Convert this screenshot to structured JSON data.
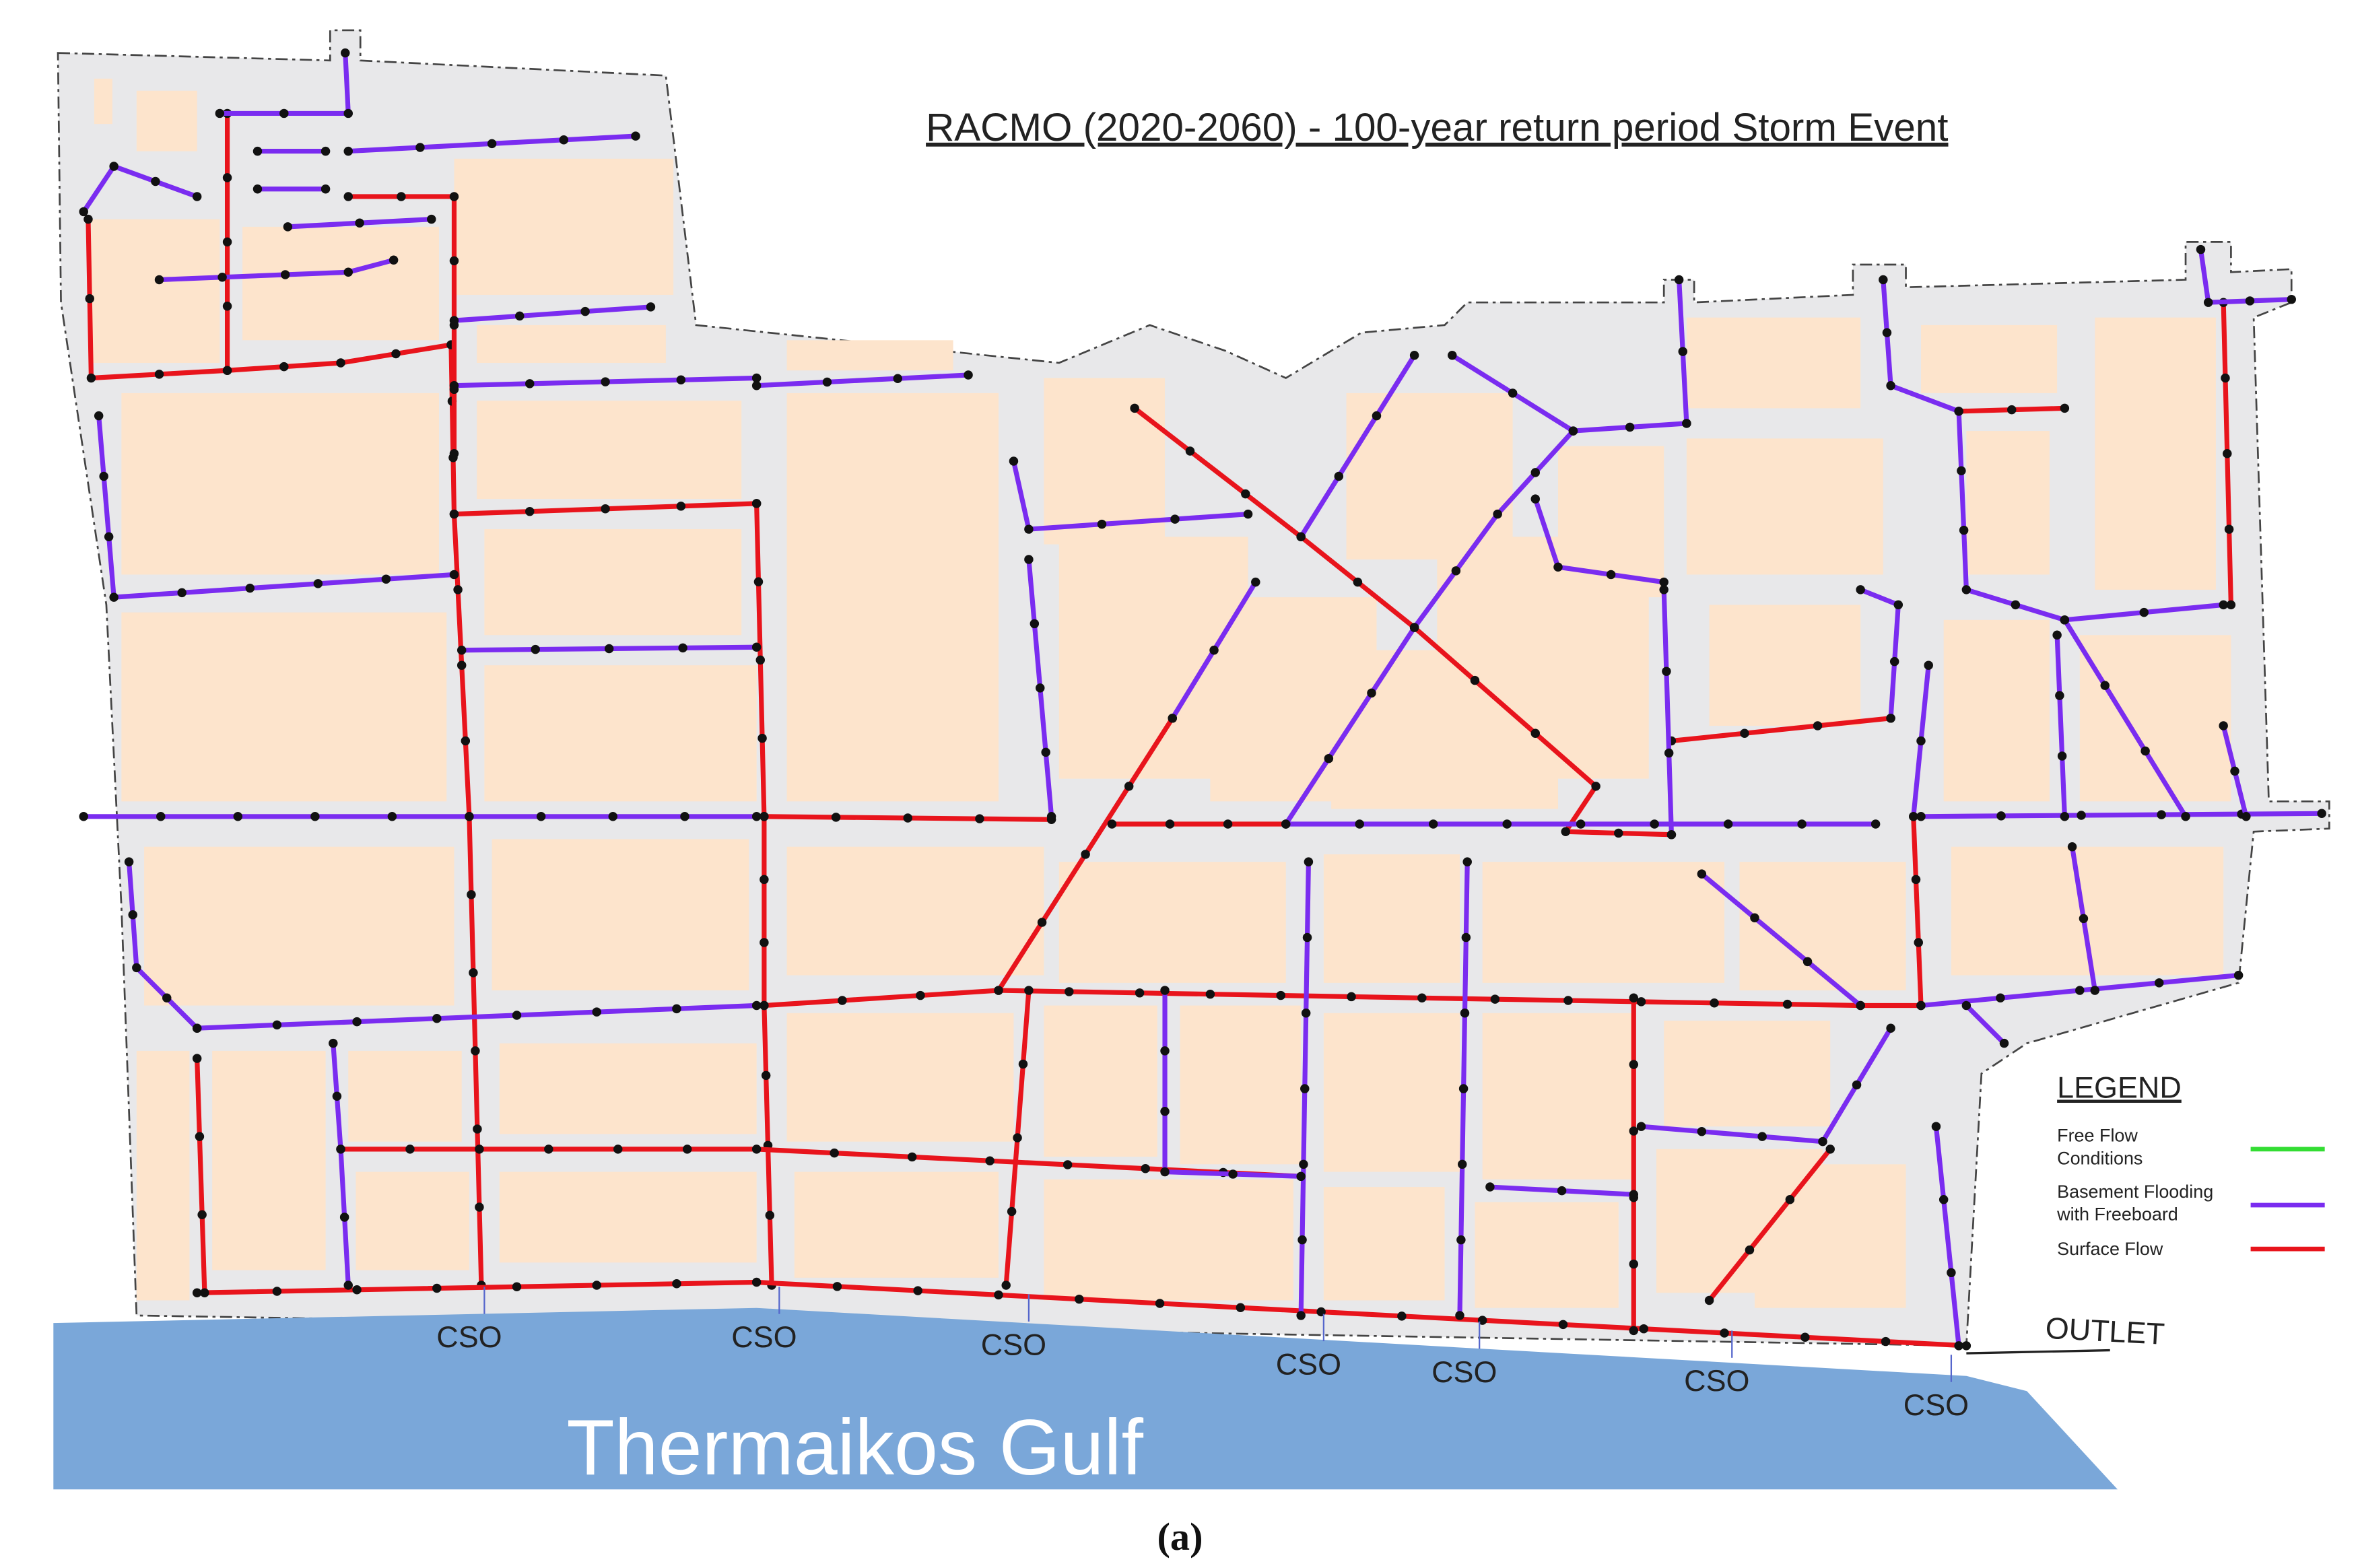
{
  "title": "RACMO (2020-2060) - 100-year return period Storm Event",
  "legend": {
    "title": "LEGEND",
    "items": [
      {
        "label": [
          "Free Flow",
          "Conditions"
        ],
        "color": "#33dd33"
      },
      {
        "label": [
          "Basement Flooding",
          "with Freeboard"
        ],
        "color": "#7a2cf0"
      },
      {
        "label": [
          "Surface Flow"
        ],
        "color": "#e8141c"
      }
    ]
  },
  "outlet": "OUTLET",
  "cso_labels": [
    "CSO",
    "CSO",
    "CSO",
    "CSO",
    "CSO",
    "CSO",
    "CSO"
  ],
  "water_label": "Thermaikos Gulf",
  "caption": "(a)"
}
